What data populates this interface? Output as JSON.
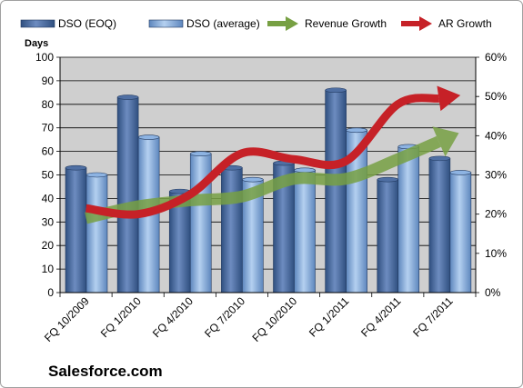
{
  "chart_data": {
    "type": "bar",
    "categories": [
      "FQ 10/2009",
      "FQ 1/2010",
      "FQ 4/2010",
      "FQ 7/2010",
      "FQ 10/2010",
      "FQ 1/2011",
      "FQ 4/2011",
      "FQ 7/2011"
    ],
    "series": [
      {
        "name": "DSO (EOQ)",
        "values": [
          53,
          83,
          43,
          53,
          55,
          86,
          48,
          57
        ],
        "color": "#4f6fa3"
      },
      {
        "name": "DSO (average)",
        "values": [
          50,
          66,
          59,
          48,
          52,
          69,
          62,
          51
        ],
        "color": "#8db3e2"
      }
    ],
    "trend_arrows": [
      {
        "name": "Revenue Growth",
        "color": "#77a043",
        "points": [
          [
            0,
            19
          ],
          [
            1,
            22
          ],
          [
            2,
            23.5
          ],
          [
            3,
            24.5
          ],
          [
            4,
            29
          ],
          [
            5,
            29
          ],
          [
            6,
            34
          ],
          [
            7,
            38.5
          ]
        ]
      },
      {
        "name": "AR Growth",
        "color": "#c62127",
        "points": [
          [
            0,
            21.5
          ],
          [
            1,
            20
          ],
          [
            2,
            25
          ],
          [
            3,
            35.5
          ],
          [
            4,
            34
          ],
          [
            5,
            33.5
          ],
          [
            6,
            48
          ],
          [
            7,
            49.5
          ]
        ]
      }
    ],
    "ylabel": "Days",
    "ylim": [
      0,
      100
    ],
    "yticks": [
      "0",
      "10",
      "20",
      "30",
      "40",
      "50",
      "60",
      "70",
      "80",
      "90",
      "100"
    ],
    "y2lim": [
      0,
      60
    ],
    "y2ticks": [
      "0%",
      "10%",
      "20%",
      "30%",
      "40%",
      "50%",
      "60%"
    ],
    "plot_background": "#cfcfcf",
    "grid": true,
    "legend_position": "top"
  },
  "watermark": "Salesforce.com"
}
